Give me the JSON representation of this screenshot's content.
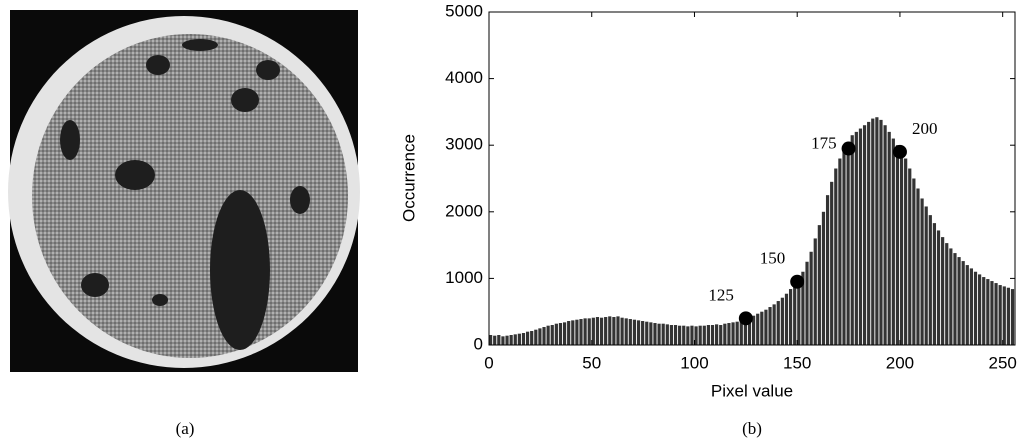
{
  "captions": [
    "(a)",
    "(b)"
  ],
  "chart_data": {
    "type": "histogram",
    "xlabel": "Pixel value",
    "ylabel": "Occurrence",
    "bins": [
      0,
      2,
      4,
      6,
      8,
      10,
      12,
      14,
      16,
      18,
      20,
      22,
      24,
      26,
      28,
      30,
      32,
      34,
      36,
      38,
      40,
      42,
      44,
      46,
      48,
      50,
      52,
      54,
      56,
      58,
      60,
      62,
      64,
      66,
      68,
      70,
      72,
      74,
      76,
      78,
      80,
      82,
      84,
      86,
      88,
      90,
      92,
      94,
      96,
      98,
      100,
      102,
      104,
      106,
      108,
      110,
      112,
      114,
      116,
      118,
      120,
      122,
      124,
      126,
      128,
      130,
      132,
      134,
      136,
      138,
      140,
      142,
      144,
      146,
      148,
      150,
      152,
      154,
      156,
      158,
      160,
      162,
      164,
      166,
      168,
      170,
      172,
      174,
      176,
      178,
      180,
      182,
      184,
      186,
      188,
      190,
      192,
      194,
      196,
      198,
      200,
      202,
      204,
      206,
      208,
      210,
      212,
      214,
      216,
      218,
      220,
      222,
      224,
      226,
      228,
      230,
      232,
      234,
      236,
      238,
      240,
      242,
      244,
      246,
      248,
      250,
      252,
      254,
      256
    ],
    "values": [
      150,
      140,
      150,
      130,
      140,
      150,
      160,
      170,
      180,
      200,
      210,
      230,
      250,
      270,
      290,
      300,
      320,
      330,
      340,
      360,
      370,
      380,
      390,
      400,
      400,
      410,
      420,
      410,
      420,
      430,
      420,
      430,
      410,
      400,
      390,
      380,
      370,
      360,
      350,
      340,
      330,
      320,
      320,
      310,
      300,
      300,
      290,
      290,
      280,
      290,
      280,
      290,
      290,
      300,
      300,
      310,
      300,
      320,
      330,
      340,
      350,
      370,
      390,
      420,
      440,
      470,
      500,
      530,
      570,
      610,
      660,
      710,
      770,
      840,
      900,
      970,
      1100,
      1250,
      1400,
      1600,
      1800,
      2000,
      2250,
      2450,
      2650,
      2800,
      2950,
      3050,
      3150,
      3200,
      3250,
      3300,
      3350,
      3400,
      3420,
      3380,
      3300,
      3200,
      3100,
      3000,
      2900,
      2800,
      2650,
      2500,
      2350,
      2200,
      2080,
      1950,
      1830,
      1720,
      1620,
      1530,
      1450,
      1380,
      1320,
      1260,
      1200,
      1150,
      1100,
      1060,
      1020,
      990,
      960,
      930,
      900,
      880,
      860,
      840
    ],
    "color": "#333333",
    "markers": {
      "x": [
        125,
        150,
        175,
        200
      ],
      "values": [
        400,
        950,
        2950,
        2900
      ],
      "color": "#000000"
    },
    "xlim": [
      0,
      256
    ],
    "ylim": [
      0,
      5000
    ],
    "xticks": [
      0,
      50,
      100,
      150,
      200,
      250
    ],
    "yticks": [
      0,
      1000,
      2000,
      3000,
      4000,
      5000
    ]
  }
}
